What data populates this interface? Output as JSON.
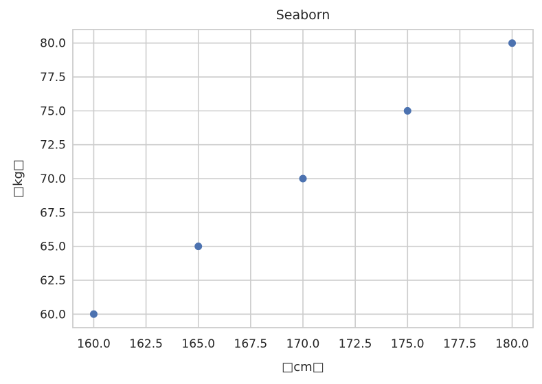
{
  "chart_data": {
    "type": "scatter",
    "title": "Seaborn",
    "xlabel": "□cm□",
    "ylabel": "□kg□",
    "x": [
      160,
      165,
      170,
      175,
      180
    ],
    "y": [
      60,
      65,
      70,
      75,
      80
    ],
    "xlim": [
      159,
      181
    ],
    "ylim": [
      59,
      81
    ],
    "xticks": [
      "160.0",
      "162.5",
      "165.0",
      "167.5",
      "170.0",
      "172.5",
      "175.0",
      "177.5",
      "180.0"
    ],
    "yticks": [
      "60.0",
      "62.5",
      "65.0",
      "67.5",
      "70.0",
      "72.5",
      "75.0",
      "77.5",
      "80.0"
    ],
    "grid": true,
    "point_color": "#4c72b0",
    "grid_color": "#cccccc",
    "style": "seaborn whitegrid"
  }
}
